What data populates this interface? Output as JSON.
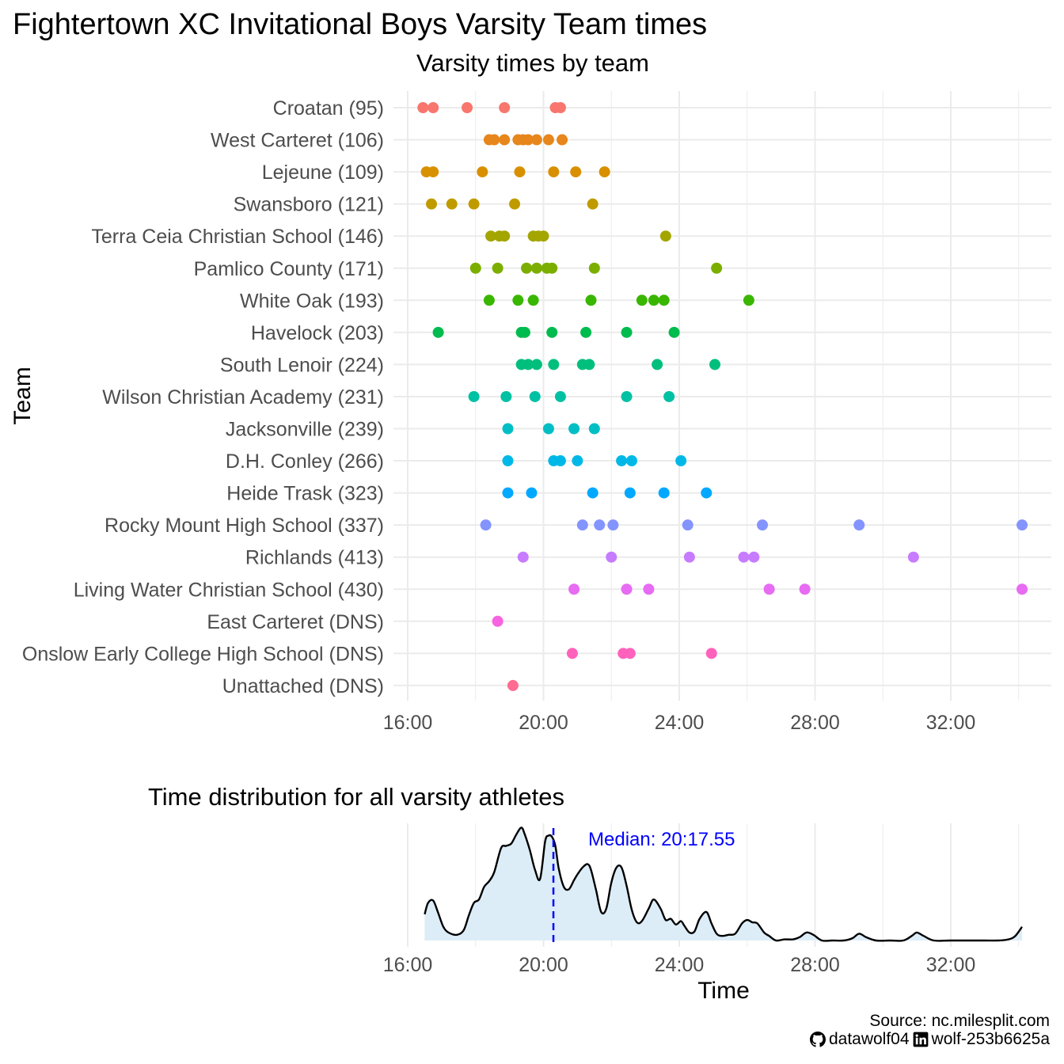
{
  "title": "Fightertown XC Invitational Boys Varsity Team times",
  "colors": {
    "grid": "#ebebeb",
    "axis_text": "#4d4d4d",
    "density_fill": "#dcedf8",
    "density_line": "#000000",
    "median": "#0000ff"
  },
  "footer": {
    "source": "Source: nc.milesplit.com",
    "github_icon": "github-icon",
    "github": "datawolf04",
    "linkedin_icon": "linkedin-icon",
    "linkedin": "wolf-253b6625a"
  },
  "chart_data": [
    {
      "type": "scatter",
      "title": "Varsity times by team",
      "xlabel": "",
      "ylabel": "Team",
      "x_unit": "minutes",
      "xlim": [
        16.0,
        34.0
      ],
      "x_ticks": [
        16,
        20,
        24,
        28,
        32
      ],
      "x_tick_labels": [
        "16:00",
        "20:00",
        "24:00",
        "28:00",
        "32:00"
      ],
      "grid": true,
      "legend": "none",
      "series": [
        {
          "name": "Croatan (95)",
          "color": "#F8766D",
          "values": [
            16.45,
            16.75,
            17.75,
            18.85,
            20.35,
            20.5
          ]
        },
        {
          "name": "West Carterete (106)",
          "color": "#E7861B",
          "values": [
            18.4,
            18.55,
            18.85,
            19.25,
            19.4,
            19.55,
            19.8,
            20.15,
            20.55
          ]
        },
        {
          "name": "Lejeune (109)",
          "color": "#D89000",
          "values": [
            16.55,
            16.75,
            18.2,
            19.3,
            20.3,
            20.95,
            21.8
          ]
        },
        {
          "name": "Swansboro (121)",
          "color": "#C09B00",
          "values": [
            16.7,
            17.3,
            17.95,
            19.15,
            21.45
          ]
        },
        {
          "name": "Terra Ceia Christian School (146)",
          "color": "#A3A500",
          "values": [
            18.45,
            18.7,
            18.85,
            19.7,
            19.85,
            20.0,
            23.6
          ]
        },
        {
          "name": "Pamlico County (171)",
          "color": "#7CAE00",
          "values": [
            18.0,
            18.65,
            19.5,
            19.8,
            20.1,
            20.25,
            21.5,
            25.1
          ]
        },
        {
          "name": "White Oak (193)",
          "color": "#39B600",
          "values": [
            18.4,
            19.25,
            19.7,
            21.4,
            22.9,
            23.25,
            23.55,
            26.05
          ]
        },
        {
          "name": "Havelock (203)",
          "color": "#00BB4E",
          "values": [
            16.9,
            19.35,
            19.45,
            20.25,
            21.25,
            22.45,
            23.85
          ]
        },
        {
          "name": "South Lenoir (224)",
          "color": "#00BF7D",
          "values": [
            19.35,
            19.55,
            19.8,
            20.3,
            21.15,
            21.35,
            23.35,
            25.05
          ]
        },
        {
          "name": "Wilson Christian Academy (231)",
          "color": "#00C1A3",
          "values": [
            17.95,
            18.9,
            19.75,
            20.5,
            22.45,
            23.7
          ]
        },
        {
          "name": "Jacksonville (239)",
          "color": "#00BFC4",
          "values": [
            18.95,
            20.15,
            20.9,
            21.5
          ]
        },
        {
          "name": "D.H. Conley (266)",
          "color": "#00B8E7",
          "values": [
            18.95,
            20.3,
            20.5,
            21.0,
            22.3,
            22.6,
            24.05
          ]
        },
        {
          "name": "Heide Trask (323)",
          "color": "#00A9FF",
          "values": [
            18.95,
            19.65,
            21.45,
            22.55,
            23.55,
            24.8
          ]
        },
        {
          "name": "Rocky Mount High School (337)",
          "color": "#8494FF",
          "values": [
            18.3,
            21.15,
            21.65,
            22.05,
            24.25,
            26.45,
            29.3,
            34.1
          ]
        },
        {
          "name": "Richlands (413)",
          "color": "#C77CFF",
          "values": [
            19.4,
            22.0,
            24.3,
            25.9,
            26.2,
            30.9
          ]
        },
        {
          "name": "Living Water Christian School (430)",
          "color": "#E76BF3",
          "values": [
            20.9,
            22.45,
            23.1,
            26.65,
            27.7,
            34.1
          ]
        },
        {
          "name": "East Carterete (DNS)",
          "color": "#F763E0",
          "values": [
            18.65
          ]
        },
        {
          "name": "Onslow Early College High School (DNS)",
          "color": "#FF62BC",
          "values": [
            20.85,
            22.35,
            22.55,
            24.95
          ]
        },
        {
          "name": "Unattached (DNS)",
          "color": "#FF6C91",
          "values": [
            19.1
          ]
        }
      ],
      "y_tick_labels": [
        "Croatan (95)",
        "West Carteret (106)",
        "Lejeune (109)",
        "Swansboro (121)",
        "Terra Ceia Christian School (146)",
        "Pamlico County (171)",
        "White Oak (193)",
        "Havelock (203)",
        "South Lenoir (224)",
        "Wilson Christian Academy (231)",
        "Jacksonville (239)",
        "D.H. Conley (266)",
        "Heide Trask (323)",
        "Rocky Mount High School (337)",
        "Richlands (413)",
        "Living Water Christian School (430)",
        "East Carteret (DNS)",
        "Onslow Early College High School (DNS)",
        "Unattached (DNS)"
      ]
    },
    {
      "type": "area",
      "title": "Time distribution for all varsity athletes",
      "xlabel": "Time",
      "ylabel": "",
      "x_unit": "minutes",
      "xlim": [
        16.0,
        34.0
      ],
      "x_ticks": [
        16,
        20,
        24,
        28,
        32
      ],
      "x_tick_labels": [
        "16:00",
        "20:00",
        "24:00",
        "28:00",
        "32:00"
      ],
      "grid": true,
      "median": 20.2925,
      "median_label": "Median: 20:17.55",
      "density": {
        "x": [
          16.5,
          16.6,
          16.75,
          16.9,
          17.05,
          17.2,
          17.45,
          17.65,
          17.8,
          17.95,
          18.1,
          18.25,
          18.4,
          18.55,
          18.75,
          18.9,
          19.05,
          19.2,
          19.35,
          19.45,
          19.6,
          19.75,
          19.9,
          20.05,
          20.15,
          20.25,
          20.35,
          20.45,
          20.6,
          20.75,
          20.9,
          21.0,
          21.15,
          21.3,
          21.4,
          21.55,
          21.7,
          21.85,
          22.0,
          22.15,
          22.3,
          22.45,
          22.6,
          22.75,
          22.9,
          23.1,
          23.25,
          23.45,
          23.6,
          23.75,
          23.9,
          24.05,
          24.15,
          24.3,
          24.45,
          24.6,
          24.8,
          24.95,
          25.1,
          25.25,
          25.45,
          25.65,
          25.85,
          26.0,
          26.15,
          26.3,
          26.5,
          26.65,
          26.85,
          27.1,
          27.35,
          27.55,
          27.75,
          27.95,
          28.2,
          28.5,
          28.85,
          29.1,
          29.3,
          29.5,
          29.8,
          30.2,
          30.6,
          30.85,
          31.0,
          31.2,
          31.5,
          32.0,
          32.5,
          33.0,
          33.4,
          33.7,
          33.9,
          34.1
        ],
        "y": [
          0.23,
          0.33,
          0.35,
          0.24,
          0.12,
          0.07,
          0.05,
          0.09,
          0.22,
          0.33,
          0.36,
          0.47,
          0.52,
          0.6,
          0.81,
          0.83,
          0.85,
          0.93,
          0.99,
          0.93,
          0.79,
          0.62,
          0.54,
          0.87,
          0.92,
          0.91,
          0.83,
          0.63,
          0.47,
          0.45,
          0.53,
          0.58,
          0.64,
          0.67,
          0.62,
          0.44,
          0.25,
          0.28,
          0.51,
          0.64,
          0.64,
          0.48,
          0.27,
          0.16,
          0.17,
          0.28,
          0.36,
          0.28,
          0.18,
          0.19,
          0.14,
          0.17,
          0.13,
          0.07,
          0.08,
          0.19,
          0.25,
          0.15,
          0.06,
          0.04,
          0.05,
          0.06,
          0.15,
          0.18,
          0.16,
          0.15,
          0.07,
          0.04,
          0.0,
          0.01,
          0.01,
          0.03,
          0.07,
          0.05,
          0.0,
          0.0,
          0.0,
          0.02,
          0.06,
          0.03,
          0.0,
          0.0,
          0.0,
          0.04,
          0.07,
          0.04,
          0.0,
          0.0,
          0.0,
          0.0,
          0.0,
          0.01,
          0.04,
          0.12
        ]
      }
    }
  ]
}
